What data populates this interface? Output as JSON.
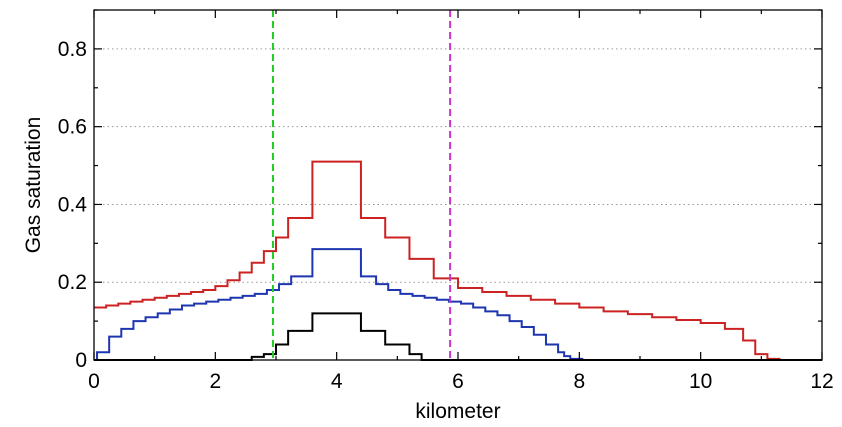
{
  "chart_data": {
    "type": "line",
    "title": "",
    "xlabel": "kilometer",
    "ylabel": "Gas saturation",
    "xlim": [
      0,
      12
    ],
    "ylim": [
      0,
      0.9
    ],
    "xticks": [
      0,
      2,
      4,
      6,
      8,
      10,
      12
    ],
    "xtick_labels": [
      "0",
      "2",
      "4",
      "6",
      "8",
      "10",
      "12"
    ],
    "yticks": [
      0,
      0.2,
      0.4,
      0.6,
      0.8
    ],
    "ytick_labels": [
      "0",
      "0.2",
      "0.4",
      "0.6",
      "0.8"
    ],
    "grid": "horizontal dotted",
    "legend": "none",
    "vertical_lines": [
      {
        "x": 2.95,
        "color": "#22cc22",
        "style": "dashed"
      },
      {
        "x": 5.87,
        "color": "#cc33cc",
        "style": "dashed"
      }
    ],
    "series": [
      {
        "color": "#cc2222",
        "step": true,
        "x": [
          0,
          0.2,
          0.4,
          0.6,
          0.8,
          1.0,
          1.2,
          1.4,
          1.6,
          1.8,
          2.0,
          2.2,
          2.4,
          2.6,
          2.8,
          3.0,
          3.2,
          3.6,
          4.0,
          4.4,
          4.8,
          5.2,
          5.6,
          6.0,
          6.4,
          6.8,
          7.2,
          7.6,
          8.0,
          8.4,
          8.8,
          9.2,
          9.6,
          10.0,
          10.4,
          10.7,
          10.9,
          11.1,
          11.3,
          12.0
        ],
        "y": [
          0.135,
          0.14,
          0.145,
          0.15,
          0.155,
          0.16,
          0.165,
          0.17,
          0.175,
          0.18,
          0.19,
          0.205,
          0.225,
          0.25,
          0.28,
          0.315,
          0.365,
          0.51,
          0.51,
          0.365,
          0.315,
          0.26,
          0.21,
          0.185,
          0.175,
          0.165,
          0.155,
          0.145,
          0.135,
          0.125,
          0.118,
          0.11,
          0.103,
          0.095,
          0.08,
          0.05,
          0.015,
          0.003,
          0.0,
          0.0
        ]
      },
      {
        "color": "#1e35b0",
        "step": true,
        "x": [
          0,
          0.05,
          0.25,
          0.45,
          0.65,
          0.85,
          1.05,
          1.25,
          1.45,
          1.65,
          1.85,
          2.05,
          2.25,
          2.45,
          2.65,
          2.85,
          3.05,
          3.25,
          3.6,
          4.0,
          4.4,
          4.65,
          4.85,
          5.05,
          5.25,
          5.45,
          5.65,
          5.85,
          6.05,
          6.25,
          6.45,
          6.65,
          6.85,
          7.05,
          7.25,
          7.45,
          7.65,
          7.75,
          7.85,
          8.05,
          12.0
        ],
        "y": [
          0.0,
          0.02,
          0.06,
          0.08,
          0.1,
          0.11,
          0.12,
          0.13,
          0.14,
          0.145,
          0.15,
          0.155,
          0.16,
          0.165,
          0.17,
          0.18,
          0.195,
          0.215,
          0.285,
          0.285,
          0.215,
          0.195,
          0.18,
          0.17,
          0.165,
          0.16,
          0.155,
          0.15,
          0.145,
          0.135,
          0.125,
          0.115,
          0.1,
          0.085,
          0.065,
          0.04,
          0.02,
          0.01,
          0.003,
          0.0,
          0.0
        ]
      },
      {
        "color": "#000000",
        "step": true,
        "x": [
          0,
          2.6,
          2.8,
          3.0,
          3.2,
          3.6,
          4.0,
          4.4,
          4.8,
          5.2,
          5.4,
          12.0
        ],
        "y": [
          0.0,
          0.008,
          0.015,
          0.04,
          0.075,
          0.12,
          0.12,
          0.075,
          0.04,
          0.015,
          0.0,
          0.0
        ]
      }
    ]
  }
}
